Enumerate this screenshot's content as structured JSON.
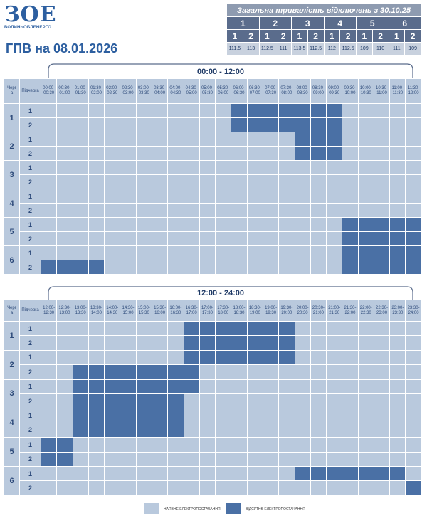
{
  "header": {
    "logo": "ЗОЕ",
    "logo_sub": "ВОЛИНЬОБЛЕНЕРГО",
    "title": "ГПВ на 08.01.2026"
  },
  "summary": {
    "title": "Загальна тривалість відключень з 30.10.25",
    "queues": [
      {
        "label": "1",
        "sub": [
          {
            "label": "1",
            "hours": 111.5
          },
          {
            "label": "2",
            "hours": 113
          }
        ]
      },
      {
        "label": "2",
        "sub": [
          {
            "label": "1",
            "hours": 112.5
          },
          {
            "label": "2",
            "hours": 111
          }
        ]
      },
      {
        "label": "3",
        "sub": [
          {
            "label": "1",
            "hours": 113.5
          },
          {
            "label": "2",
            "hours": 112.5
          }
        ]
      },
      {
        "label": "4",
        "sub": [
          {
            "label": "1",
            "hours": 112
          },
          {
            "label": "2",
            "hours": 112.5
          }
        ]
      },
      {
        "label": "5",
        "sub": [
          {
            "label": "1",
            "hours": 109
          },
          {
            "label": "2",
            "hours": 110
          }
        ]
      },
      {
        "label": "6",
        "sub": [
          {
            "label": "1",
            "hours": 111
          },
          {
            "label": "2",
            "hours": 109
          }
        ]
      }
    ]
  },
  "schedules": [
    {
      "period": "00:00 - 12:00",
      "queue_header": [
        "Черг",
        "а"
      ],
      "subqueue_header": "Підчерга",
      "slots": [
        {
          "from": "00:00-",
          "to": "00:30"
        },
        {
          "from": "00:30-",
          "to": "01:00"
        },
        {
          "from": "01:00-",
          "to": "01:30"
        },
        {
          "from": "01:30-",
          "to": "02:00"
        },
        {
          "from": "02:00-",
          "to": "02:30"
        },
        {
          "from": "02:30-",
          "to": "03:00"
        },
        {
          "from": "03:00-",
          "to": "03:30"
        },
        {
          "from": "03:30-",
          "to": "04:00"
        },
        {
          "from": "04:00-",
          "to": "04:30"
        },
        {
          "from": "04:30-",
          "to": "05:00"
        },
        {
          "from": "05:00-",
          "to": "05:30"
        },
        {
          "from": "05:30-",
          "to": "06:00"
        },
        {
          "from": "06:00-",
          "to": "06:30"
        },
        {
          "from": "06:30-",
          "to": "07:00"
        },
        {
          "from": "07:00-",
          "to": "07:30"
        },
        {
          "from": "07:30-",
          "to": "08:00"
        },
        {
          "from": "08:00-",
          "to": "08:30"
        },
        {
          "from": "08:30-",
          "to": "09:00"
        },
        {
          "from": "09:00-",
          "to": "09:30"
        },
        {
          "from": "09:30-",
          "to": "10:00"
        },
        {
          "from": "10:00-",
          "to": "10:30"
        },
        {
          "from": "10:30-",
          "to": "11:00"
        },
        {
          "from": "11:00-",
          "to": "11:30"
        },
        {
          "from": "11:30-",
          "to": "12:00"
        }
      ],
      "queues": [
        {
          "label": "1",
          "rows": [
            {
              "label": "1",
              "off": [
                0,
                0,
                0,
                0,
                0,
                0,
                0,
                0,
                0,
                0,
                0,
                0,
                1,
                1,
                1,
                1,
                1,
                1,
                1,
                0,
                0,
                0,
                0,
                0
              ]
            },
            {
              "label": "2",
              "off": [
                0,
                0,
                0,
                0,
                0,
                0,
                0,
                0,
                0,
                0,
                0,
                0,
                1,
                1,
                1,
                1,
                1,
                1,
                1,
                0,
                0,
                0,
                0,
                0
              ]
            }
          ]
        },
        {
          "label": "2",
          "rows": [
            {
              "label": "1",
              "off": [
                0,
                0,
                0,
                0,
                0,
                0,
                0,
                0,
                0,
                0,
                0,
                0,
                0,
                0,
                0,
                0,
                1,
                1,
                1,
                0,
                0,
                0,
                0,
                0
              ]
            },
            {
              "label": "2",
              "off": [
                0,
                0,
                0,
                0,
                0,
                0,
                0,
                0,
                0,
                0,
                0,
                0,
                0,
                0,
                0,
                0,
                1,
                1,
                1,
                0,
                0,
                0,
                0,
                0
              ]
            }
          ]
        },
        {
          "label": "3",
          "rows": [
            {
              "label": "1",
              "off": [
                0,
                0,
                0,
                0,
                0,
                0,
                0,
                0,
                0,
                0,
                0,
                0,
                0,
                0,
                0,
                0,
                0,
                0,
                0,
                0,
                0,
                0,
                0,
                0
              ]
            },
            {
              "label": "2",
              "off": [
                0,
                0,
                0,
                0,
                0,
                0,
                0,
                0,
                0,
                0,
                0,
                0,
                0,
                0,
                0,
                0,
                0,
                0,
                0,
                0,
                0,
                0,
                0,
                0
              ]
            }
          ]
        },
        {
          "label": "4",
          "rows": [
            {
              "label": "1",
              "off": [
                0,
                0,
                0,
                0,
                0,
                0,
                0,
                0,
                0,
                0,
                0,
                0,
                0,
                0,
                0,
                0,
                0,
                0,
                0,
                0,
                0,
                0,
                0,
                0
              ]
            },
            {
              "label": "2",
              "off": [
                0,
                0,
                0,
                0,
                0,
                0,
                0,
                0,
                0,
                0,
                0,
                0,
                0,
                0,
                0,
                0,
                0,
                0,
                0,
                0,
                0,
                0,
                0,
                0
              ]
            }
          ]
        },
        {
          "label": "5",
          "rows": [
            {
              "label": "1",
              "off": [
                0,
                0,
                0,
                0,
                0,
                0,
                0,
                0,
                0,
                0,
                0,
                0,
                0,
                0,
                0,
                0,
                0,
                0,
                0,
                1,
                1,
                1,
                1,
                1
              ]
            },
            {
              "label": "2",
              "off": [
                0,
                0,
                0,
                0,
                0,
                0,
                0,
                0,
                0,
                0,
                0,
                0,
                0,
                0,
                0,
                0,
                0,
                0,
                0,
                1,
                1,
                1,
                1,
                1
              ]
            }
          ]
        },
        {
          "label": "6",
          "rows": [
            {
              "label": "1",
              "off": [
                0,
                0,
                0,
                0,
                0,
                0,
                0,
                0,
                0,
                0,
                0,
                0,
                0,
                0,
                0,
                0,
                0,
                0,
                0,
                1,
                1,
                1,
                1,
                1
              ]
            },
            {
              "label": "2",
              "off": [
                1,
                1,
                1,
                1,
                0,
                0,
                0,
                0,
                0,
                0,
                0,
                0,
                0,
                0,
                0,
                0,
                0,
                0,
                0,
                1,
                1,
                1,
                1,
                1
              ]
            }
          ]
        }
      ]
    },
    {
      "period": "12:00 - 24:00",
      "queue_header": [
        "Черг",
        "а"
      ],
      "subqueue_header": "Підчерга",
      "slots": [
        {
          "from": "12:00-",
          "to": "12:30"
        },
        {
          "from": "12:30-",
          "to": "13:00"
        },
        {
          "from": "13:00-",
          "to": "13:30"
        },
        {
          "from": "13:30-",
          "to": "14:00"
        },
        {
          "from": "14:00-",
          "to": "14:30"
        },
        {
          "from": "14:30-",
          "to": "15:00"
        },
        {
          "from": "15:00-",
          "to": "15:30"
        },
        {
          "from": "15:30-",
          "to": "16:00"
        },
        {
          "from": "16:00-",
          "to": "16:30"
        },
        {
          "from": "16:30-",
          "to": "17:00"
        },
        {
          "from": "17:00-",
          "to": "17:30"
        },
        {
          "from": "17:30-",
          "to": "18:00"
        },
        {
          "from": "18:00-",
          "to": "18:30"
        },
        {
          "from": "18:30-",
          "to": "19:00"
        },
        {
          "from": "19:00-",
          "to": "19:30"
        },
        {
          "from": "19:30-",
          "to": "20:00"
        },
        {
          "from": "20:00-",
          "to": "20:30"
        },
        {
          "from": "20:30-",
          "to": "21:00"
        },
        {
          "from": "21:00-",
          "to": "21:30"
        },
        {
          "from": "21:30-",
          "to": "22:00"
        },
        {
          "from": "22:00-",
          "to": "22:30"
        },
        {
          "from": "22:30-",
          "to": "23:00"
        },
        {
          "from": "23:00-",
          "to": "23:30"
        },
        {
          "from": "23:30-",
          "to": "24:00"
        }
      ],
      "queues": [
        {
          "label": "1",
          "rows": [
            {
              "label": "1",
              "off": [
                0,
                0,
                0,
                0,
                0,
                0,
                0,
                0,
                0,
                1,
                1,
                1,
                1,
                1,
                1,
                1,
                0,
                0,
                0,
                0,
                0,
                0,
                0,
                0
              ]
            },
            {
              "label": "2",
              "off": [
                0,
                0,
                0,
                0,
                0,
                0,
                0,
                0,
                0,
                1,
                1,
                1,
                1,
                1,
                1,
                1,
                0,
                0,
                0,
                0,
                0,
                0,
                0,
                0
              ]
            }
          ]
        },
        {
          "label": "2",
          "rows": [
            {
              "label": "1",
              "off": [
                0,
                0,
                0,
                0,
                0,
                0,
                0,
                0,
                0,
                1,
                1,
                1,
                1,
                1,
                1,
                1,
                0,
                0,
                0,
                0,
                0,
                0,
                0,
                0
              ]
            },
            {
              "label": "2",
              "off": [
                0,
                0,
                1,
                1,
                1,
                1,
                1,
                1,
                1,
                1,
                0,
                0,
                0,
                0,
                0,
                0,
                0,
                0,
                0,
                0,
                0,
                0,
                0,
                0
              ]
            }
          ]
        },
        {
          "label": "3",
          "rows": [
            {
              "label": "1",
              "off": [
                0,
                0,
                1,
                1,
                1,
                1,
                1,
                1,
                1,
                1,
                0,
                0,
                0,
                0,
                0,
                0,
                0,
                0,
                0,
                0,
                0,
                0,
                0,
                0
              ]
            },
            {
              "label": "2",
              "off": [
                0,
                0,
                1,
                1,
                1,
                1,
                1,
                1,
                1,
                0,
                0,
                0,
                0,
                0,
                0,
                0,
                0,
                0,
                0,
                0,
                0,
                0,
                0,
                0
              ]
            }
          ]
        },
        {
          "label": "4",
          "rows": [
            {
              "label": "1",
              "off": [
                0,
                0,
                1,
                1,
                1,
                1,
                1,
                1,
                1,
                0,
                0,
                0,
                0,
                0,
                0,
                0,
                0,
                0,
                0,
                0,
                0,
                0,
                0,
                0
              ]
            },
            {
              "label": "2",
              "off": [
                0,
                0,
                1,
                1,
                1,
                1,
                1,
                1,
                1,
                0,
                0,
                0,
                0,
                0,
                0,
                0,
                0,
                0,
                0,
                0,
                0,
                0,
                0,
                0
              ]
            }
          ]
        },
        {
          "label": "5",
          "rows": [
            {
              "label": "1",
              "off": [
                1,
                1,
                0,
                0,
                0,
                0,
                0,
                0,
                0,
                0,
                0,
                0,
                0,
                0,
                0,
                0,
                0,
                0,
                0,
                0,
                0,
                0,
                0,
                0
              ]
            },
            {
              "label": "2",
              "off": [
                1,
                1,
                0,
                0,
                0,
                0,
                0,
                0,
                0,
                0,
                0,
                0,
                0,
                0,
                0,
                0,
                0,
                0,
                0,
                0,
                0,
                0,
                0,
                0
              ]
            }
          ]
        },
        {
          "label": "6",
          "rows": [
            {
              "label": "1",
              "off": [
                0,
                0,
                0,
                0,
                0,
                0,
                0,
                0,
                0,
                0,
                0,
                0,
                0,
                0,
                0,
                0,
                1,
                1,
                1,
                1,
                1,
                1,
                1,
                0
              ]
            },
            {
              "label": "2",
              "off": [
                0,
                0,
                0,
                0,
                0,
                0,
                0,
                0,
                0,
                0,
                0,
                0,
                0,
                0,
                0,
                0,
                0,
                0,
                0,
                0,
                0,
                0,
                0,
                1
              ]
            }
          ]
        }
      ]
    }
  ],
  "legend": {
    "on": "- НАЯВНЕ ЕЛЕКТРОПОСТАЧАННЯ",
    "off": "- ВІДСУТНЄ ЕЛЕКТРОПОСТАЧАННЯ"
  }
}
